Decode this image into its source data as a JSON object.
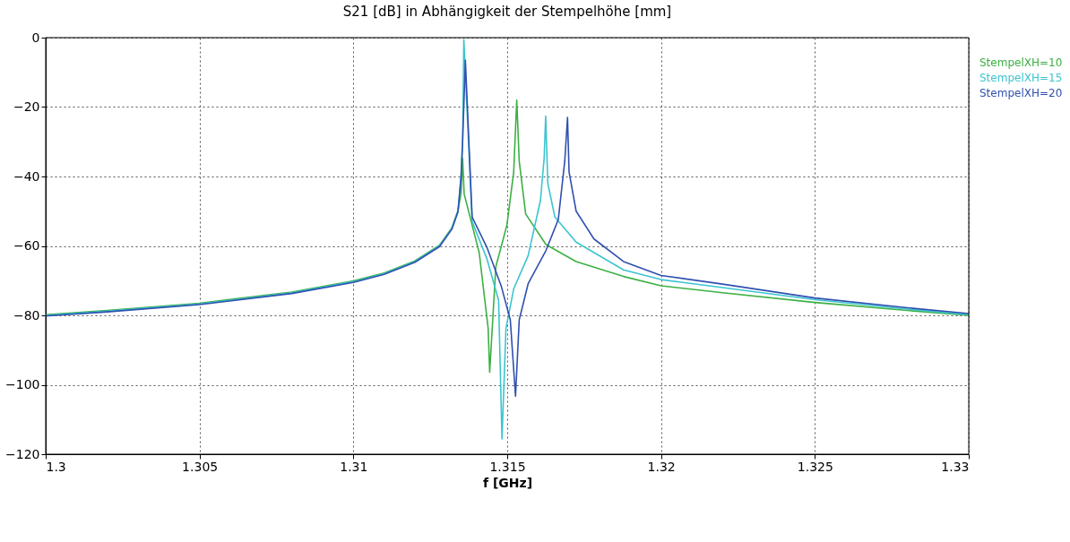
{
  "chart_data": {
    "type": "line",
    "title": "S21 [dB] in Abhängigkeit der Stempelhöhe [mm]",
    "xlabel": "f [GHz]",
    "xlim": [
      1.3,
      1.33
    ],
    "xticks": [
      {
        "value": 1.3,
        "label": "1.3"
      },
      1.305,
      {
        "value": 1.31,
        "label": "1.31"
      },
      1.315,
      {
        "value": 1.32,
        "label": "1.32"
      },
      1.325,
      {
        "value": 1.33,
        "label": "1.33"
      }
    ],
    "ylim": [
      -120,
      0
    ],
    "yticks": [
      -120,
      -100,
      -80,
      -60,
      -40,
      -20,
      0
    ],
    "grid": true,
    "legend": "top right",
    "line_style": "solid",
    "series": [
      {
        "name": "StempelXH=10",
        "color": "#3cb043",
        "x": [
          1.3,
          1.302,
          1.305,
          1.308,
          1.31,
          1.311,
          1.312,
          1.3128,
          1.3132,
          1.3134,
          1.3135,
          1.31355,
          1.3136,
          1.31409,
          1.31438,
          1.31443,
          1.31463,
          1.31499,
          1.31521,
          1.31531,
          1.31539,
          1.3156,
          1.31626,
          1.31724,
          1.31878,
          1.32,
          1.322,
          1.325,
          1.328,
          1.33
        ],
        "values": [
          -79.8,
          -78.6,
          -76.5,
          -73.3,
          -70.1,
          -67.8,
          -64.3,
          -59.8,
          -54.8,
          -49.8,
          -44.8,
          -34.8,
          -45,
          -62,
          -83.7,
          -96.4,
          -66,
          -54,
          -38.8,
          -18,
          -35.6,
          -50.8,
          -59.6,
          -64.5,
          -68.8,
          -71.5,
          -73.5,
          -76.3,
          -78.6,
          -80
        ]
      },
      {
        "name": "StempelXH=15",
        "color": "#3cc4d0",
        "x": [
          1.3,
          1.302,
          1.305,
          1.308,
          1.31,
          1.311,
          1.312,
          1.3128,
          1.3132,
          1.3134,
          1.3135,
          1.31355,
          1.31359,
          1.31386,
          1.31434,
          1.31472,
          1.31483,
          1.31496,
          1.31521,
          1.31568,
          1.31608,
          1.3162,
          1.31625,
          1.31632,
          1.31655,
          1.31724,
          1.31878,
          1.32,
          1.322,
          1.325,
          1.328,
          1.33
        ],
        "values": [
          -80,
          -78.8,
          -76.7,
          -73.5,
          -70.3,
          -68,
          -64.5,
          -60,
          -55,
          -50,
          -40,
          -30,
          -0.6,
          -53,
          -63.7,
          -75.7,
          -115.6,
          -83.7,
          -72.4,
          -62.8,
          -46.9,
          -34.8,
          -22.6,
          -42,
          -51.7,
          -58.9,
          -66.9,
          -69.7,
          -72,
          -75.5,
          -78.2,
          -79.8
        ]
      },
      {
        "name": "StempelXH=20",
        "color": "#3050b0",
        "x": [
          1.3,
          1.302,
          1.305,
          1.308,
          1.31,
          1.311,
          1.312,
          1.3128,
          1.3132,
          1.3134,
          1.3135,
          1.31355,
          1.31364,
          1.31386,
          1.31434,
          1.31481,
          1.3151,
          1.31527,
          1.31539,
          1.31568,
          1.31626,
          1.31666,
          1.31687,
          1.31696,
          1.31701,
          1.31724,
          1.31782,
          1.31878,
          1.32,
          1.322,
          1.325,
          1.328,
          1.33
        ],
        "values": [
          -80.2,
          -79,
          -76.9,
          -73.7,
          -70.5,
          -68.2,
          -64.7,
          -60.2,
          -55.2,
          -50.2,
          -40,
          -30,
          -6.5,
          -51.7,
          -60.4,
          -71.7,
          -81.3,
          -103.3,
          -81.3,
          -70.9,
          -61.3,
          -52.4,
          -35.6,
          -23,
          -38.7,
          -50,
          -58,
          -64.5,
          -68.5,
          -71,
          -75,
          -77.8,
          -79.5
        ]
      }
    ]
  }
}
